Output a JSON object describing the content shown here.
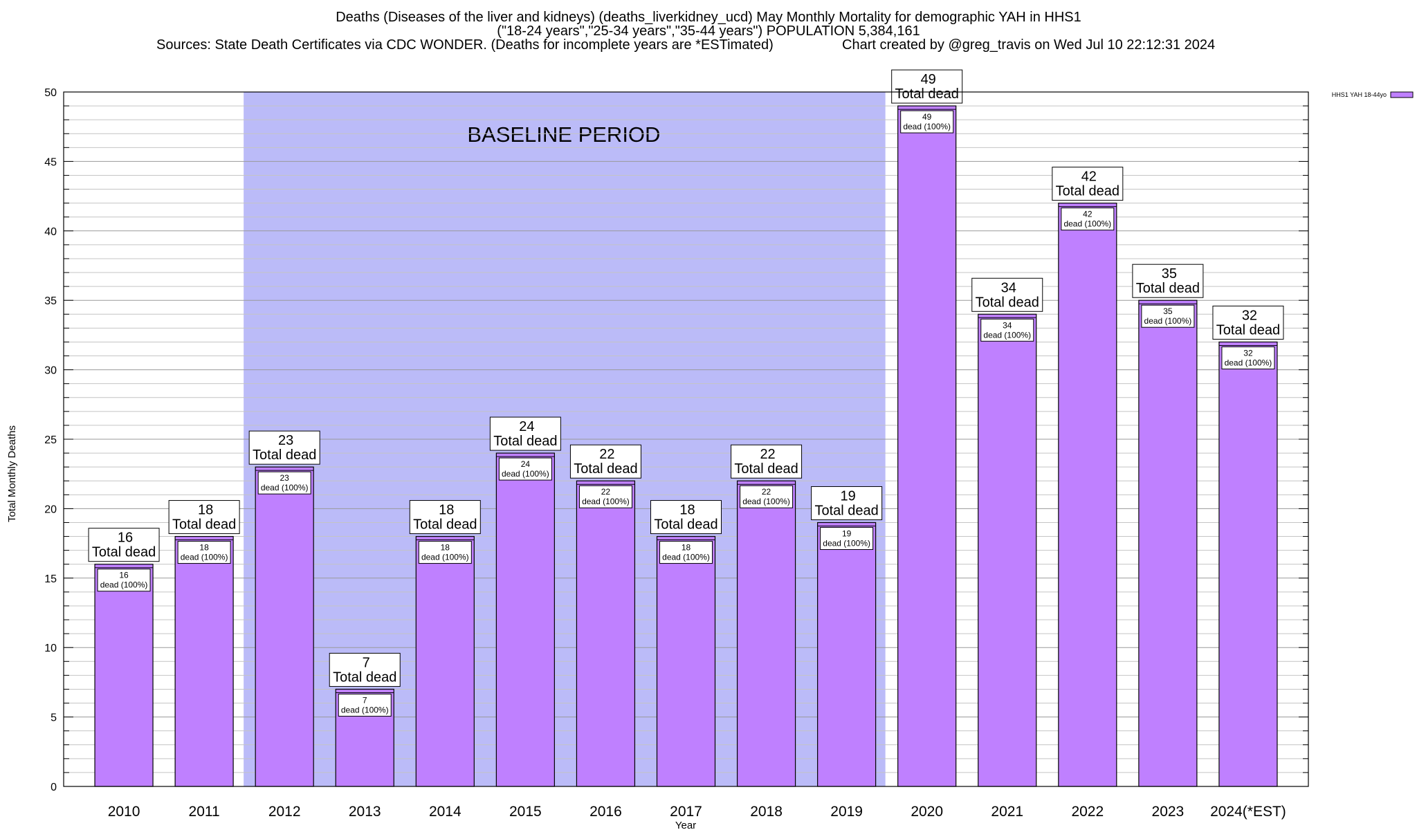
{
  "header": {
    "title_line1": "Deaths (Diseases of the liver and kidneys) (deaths_liverkidney_ucd) May Monthly Mortality for demographic YAH in HHS1",
    "title_line2": "(\"18-24 years\",\"25-34 years\",\"35-44 years\") POPULATION 5,384,161",
    "title_line3_left": "Sources: State Death Certificates via CDC WONDER. (Deaths for incomplete years are *ESTimated)",
    "title_line3_right": "Chart created by @greg_travis on Wed Jul 10 22:12:31 2024"
  },
  "chart_data": {
    "type": "bar",
    "xlabel": "Year",
    "ylabel": "Total Monthly Deaths",
    "ylim": [
      0,
      50
    ],
    "yticks": [
      0,
      5,
      10,
      15,
      20,
      25,
      30,
      35,
      40,
      45,
      50
    ],
    "grid": true,
    "categories": [
      "2010",
      "2011",
      "2012",
      "2013",
      "2014",
      "2015",
      "2016",
      "2017",
      "2018",
      "2019",
      "2020",
      "2021",
      "2022",
      "2023",
      "2024(*EST)"
    ],
    "series": [
      {
        "name": "HHS1 YAH 18-44yo",
        "color": "#bf80ff",
        "values": [
          16,
          18,
          23,
          7,
          18,
          24,
          22,
          18,
          22,
          19,
          49,
          34,
          42,
          35,
          32
        ]
      }
    ],
    "total_label_suffix": "Total dead",
    "inner_label_suffix": "dead (100%)",
    "baseline_period": {
      "label": "BASELINE PERIOD",
      "from": "2012",
      "to": "2019",
      "color": "#bbbbf8"
    },
    "legend_position": "top-right"
  }
}
